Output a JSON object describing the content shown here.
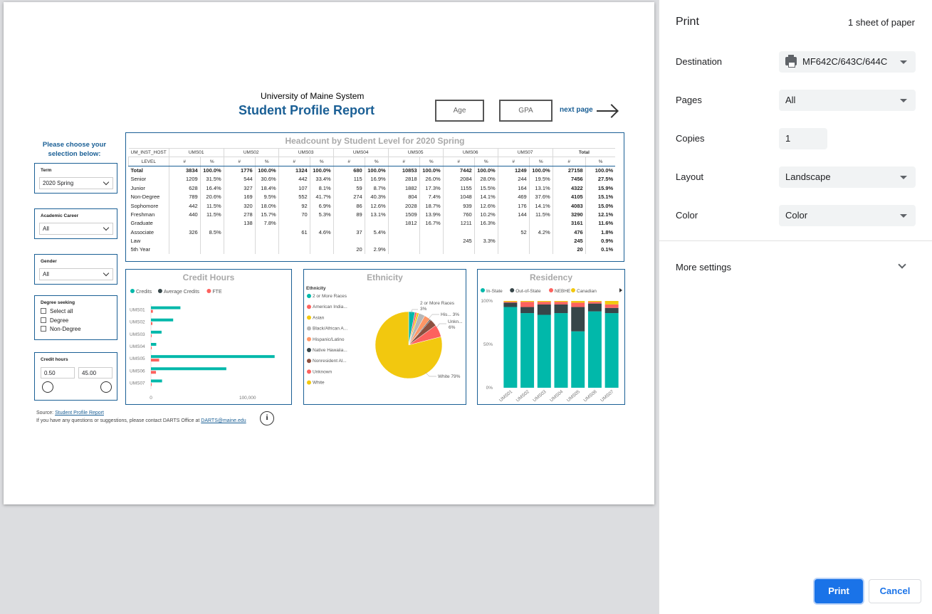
{
  "print_panel": {
    "title": "Print",
    "sheets": "1 sheet of paper",
    "destination_label": "Destination",
    "destination_value": "MF642C/643C/644C",
    "pages_label": "Pages",
    "pages_value": "All",
    "copies_label": "Copies",
    "copies_value": "1",
    "layout_label": "Layout",
    "layout_value": "Landscape",
    "color_label": "Color",
    "color_value": "Color",
    "more_settings": "More settings",
    "print_button": "Print",
    "cancel_button": "Cancel",
    "accent": "#1a73e8"
  },
  "report": {
    "org": "University of Maine System",
    "title": "Student Profile Report",
    "nav": {
      "age": "Age",
      "gpa": "GPA",
      "next": "next page"
    },
    "choose": "Please choose your selection below:",
    "slicers": {
      "term_label": "Term",
      "term_value": "2020 Spring",
      "career_label": "Academic Career",
      "career_value": "All",
      "gender_label": "Gender",
      "gender_value": "All",
      "degree_label": "Degree seeking",
      "degree_options": [
        "Select all",
        "Degree",
        "Non-Degree"
      ],
      "credit_label": "Credit hours",
      "credit_min": "0.50",
      "credit_max": "45.00"
    },
    "source_prefix": "Source: ",
    "source_link": "Student Profile Report",
    "contact_prefix": "If you have any questions or suggestions, please contact DARTS Office at ",
    "contact_link": "DARTS@maine.edu",
    "info_icon": "i",
    "brand_color": "#1a5f95"
  },
  "headcount": {
    "title": "Headcount by Student Level for 2020 Spring",
    "host_header": "UM_INST_HOST",
    "level_header": "LEVEL",
    "campuses": [
      "UMS01",
      "UMS02",
      "UMS03",
      "UMS04",
      "UMS05",
      "UMS06",
      "UMS07"
    ],
    "total_header": "Total",
    "count_header": "#",
    "pct_header": "%",
    "rows": [
      {
        "level": "Total",
        "cells": [
          "3834",
          "100.0%",
          "1776",
          "100.0%",
          "1324",
          "100.0%",
          "680",
          "100.0%",
          "10853",
          "100.0%",
          "7442",
          "100.0%",
          "1249",
          "100.0%",
          "27158",
          "100.0%"
        ]
      },
      {
        "level": "Senior",
        "cells": [
          "1209",
          "31.5%",
          "544",
          "30.6%",
          "442",
          "33.4%",
          "115",
          "16.9%",
          "2818",
          "26.0%",
          "2084",
          "28.0%",
          "244",
          "19.5%",
          "7456",
          "27.5%"
        ]
      },
      {
        "level": "Junior",
        "cells": [
          "628",
          "16.4%",
          "327",
          "18.4%",
          "107",
          "8.1%",
          "59",
          "8.7%",
          "1882",
          "17.3%",
          "1155",
          "15.5%",
          "164",
          "13.1%",
          "4322",
          "15.9%"
        ]
      },
      {
        "level": "Non-Degree",
        "cells": [
          "789",
          "20.6%",
          "169",
          "9.5%",
          "552",
          "41.7%",
          "274",
          "40.3%",
          "804",
          "7.4%",
          "1048",
          "14.1%",
          "469",
          "37.6%",
          "4105",
          "15.1%"
        ]
      },
      {
        "level": "Sophomore",
        "cells": [
          "442",
          "11.5%",
          "320",
          "18.0%",
          "92",
          "6.9%",
          "86",
          "12.6%",
          "2028",
          "18.7%",
          "939",
          "12.6%",
          "176",
          "14.1%",
          "4083",
          "15.0%"
        ]
      },
      {
        "level": "Freshman",
        "cells": [
          "440",
          "11.5%",
          "278",
          "15.7%",
          "70",
          "5.3%",
          "89",
          "13.1%",
          "1509",
          "13.9%",
          "760",
          "10.2%",
          "144",
          "11.5%",
          "3290",
          "12.1%"
        ]
      },
      {
        "level": "Graduate",
        "cells": [
          "",
          "",
          "138",
          "7.8%",
          "",
          "",
          "",
          "",
          "1812",
          "16.7%",
          "1211",
          "16.3%",
          "",
          "",
          "3161",
          "11.6%"
        ]
      },
      {
        "level": "Associate",
        "cells": [
          "326",
          "8.5%",
          "",
          "",
          "61",
          "4.6%",
          "37",
          "5.4%",
          "",
          "",
          "",
          "",
          "52",
          "4.2%",
          "476",
          "1.8%"
        ]
      },
      {
        "level": "Law",
        "cells": [
          "",
          "",
          "",
          "",
          "",
          "",
          "",
          "",
          "",
          "",
          "245",
          "3.3%",
          "",
          "",
          "245",
          "0.9%"
        ]
      },
      {
        "level": "5th Year",
        "cells": [
          "",
          "",
          "",
          "",
          "",
          "",
          "20",
          "2.9%",
          "",
          "",
          "",
          "",
          "",
          "",
          "20",
          "0.1%"
        ]
      }
    ]
  },
  "chart_data": [
    {
      "type": "bar",
      "title": "Credit Hours",
      "orientation": "horizontal",
      "legend": [
        "Credits",
        "Average Credits",
        "FTE"
      ],
      "legend_colors": [
        "#01b8aa",
        "#374649",
        "#fd625e"
      ],
      "categories": [
        "UMS01",
        "UMS02",
        "UMS03",
        "UMS04",
        "UMS05",
        "UMS06",
        "UMS07"
      ],
      "series": [
        {
          "name": "Credits",
          "color": "#01b8aa",
          "values": [
            30500,
            23000,
            11000,
            5500,
            128000,
            78000,
            11500
          ]
        },
        {
          "name": "FTE",
          "color": "#fd625e",
          "values": [
            2000,
            1500,
            700,
            350,
            8500,
            5200,
            700
          ]
        }
      ],
      "xticks": [
        "0",
        "100,000"
      ],
      "xlim": [
        0,
        140000
      ]
    },
    {
      "type": "pie",
      "title": "Ethnicity",
      "legend_title": "Ethnicity",
      "legend": [
        "2 or More Races",
        "American India...",
        "Asian",
        "Black/African A...",
        "Hispanic/Latino",
        "Native Hawaiia...",
        "Nonresident Al...",
        "Unknown",
        "White"
      ],
      "slices": [
        {
          "name": "2 or More Races",
          "value": 3,
          "color": "#01b8aa"
        },
        {
          "name": "American India...",
          "value": 1,
          "color": "#fd625e"
        },
        {
          "name": "Asian",
          "value": 1,
          "color": "#f2c80f"
        },
        {
          "name": "Black/African A...",
          "value": 3,
          "color": "#b7b7b7"
        },
        {
          "name": "Hispanic/Latino",
          "value": 3,
          "color": "#fe9666"
        },
        {
          "name": "Native Hawaiia...",
          "value": 0.5,
          "color": "#374649"
        },
        {
          "name": "Nonresident Al...",
          "value": 3.5,
          "color": "#8c4f3f"
        },
        {
          "name": "Unknown",
          "value": 6,
          "color": "#fd625e"
        },
        {
          "name": "White",
          "value": 79,
          "color": "#f2c80f"
        }
      ],
      "labels": [
        {
          "text": "2 or More Races",
          "sub": "3%"
        },
        {
          "text": "His... 3%",
          "sub": ""
        },
        {
          "text": "Unkn...",
          "sub": "6%"
        },
        {
          "text": "White 79%",
          "sub": ""
        }
      ]
    },
    {
      "type": "bar",
      "title": "Residency",
      "stacked": true,
      "percent": true,
      "legend": [
        "In-State",
        "Out-of-State",
        "NEBHE",
        "Canadian"
      ],
      "categories": [
        "UMS01",
        "UMS02",
        "UMS03",
        "UMS04",
        "UMS05",
        "UMS06",
        "UMS07"
      ],
      "series": [
        {
          "name": "In-State",
          "color": "#01b8aa",
          "values": [
            93,
            86,
            84,
            86,
            65,
            88,
            86
          ]
        },
        {
          "name": "Out-of-State",
          "color": "#374649",
          "values": [
            5,
            7,
            12,
            10,
            28,
            9,
            6
          ]
        },
        {
          "name": "NEBHE",
          "color": "#fd625e",
          "values": [
            1,
            6,
            3,
            3,
            5,
            2,
            4
          ]
        },
        {
          "name": "Canadian",
          "color": "#f2c80f",
          "values": [
            1,
            1,
            1,
            1,
            2,
            1,
            4
          ]
        }
      ],
      "yticks": [
        "0%",
        "50%",
        "100%"
      ],
      "ylim": [
        0,
        100
      ]
    }
  ]
}
